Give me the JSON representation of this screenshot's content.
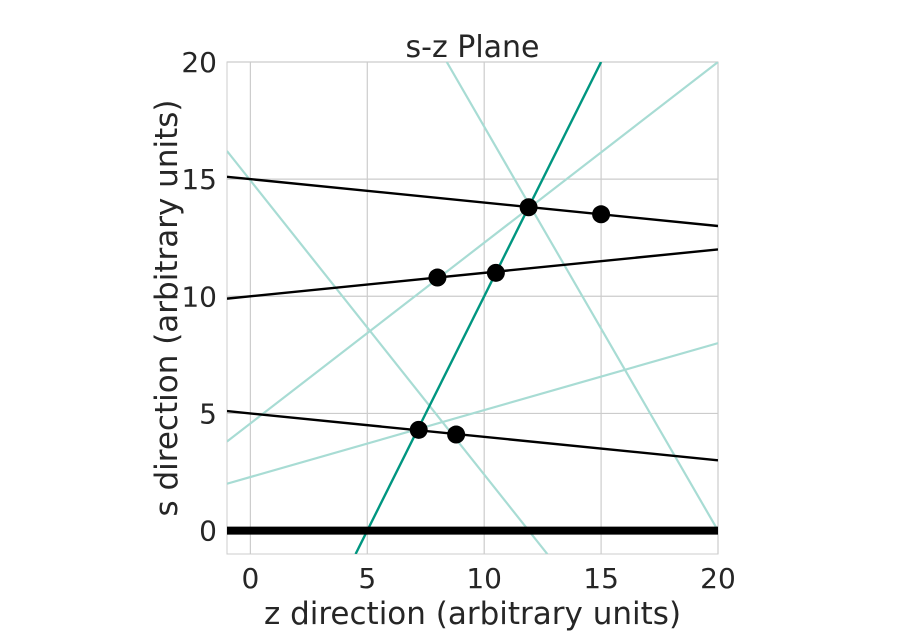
{
  "chart_data": {
    "type": "line",
    "title": "s-z Plane",
    "xlabel": "z direction (arbitrary units)",
    "ylabel": "s direction (arbitrary units)",
    "xlim": [
      -1,
      20
    ],
    "ylim": [
      -1,
      20
    ],
    "xticks": [
      0,
      5,
      10,
      15,
      20
    ],
    "yticks": [
      0,
      5,
      10,
      15,
      20
    ],
    "grid": true,
    "colors": {
      "black": "#000000",
      "teal": "#009680",
      "teal_light": "#a8dcd4",
      "grid": "#cccccc",
      "text": "#262626"
    },
    "baseline": {
      "y": 0,
      "color": "#000000"
    },
    "series": [
      {
        "x": [
          -1,
          20
        ],
        "y": [
          15.1,
          13.0
        ],
        "color": "#000000"
      },
      {
        "x": [
          -1,
          20
        ],
        "y": [
          9.9,
          12.0
        ],
        "color": "#000000"
      },
      {
        "x": [
          -1,
          20
        ],
        "y": [
          5.1,
          3.0
        ],
        "color": "#000000"
      },
      {
        "x": [
          4.5,
          15.0
        ],
        "y": [
          -1,
          20
        ],
        "color": "#009680"
      },
      {
        "x": [
          -1,
          20
        ],
        "y": [
          3.8,
          20.0
        ],
        "color": "#a8dcd4"
      },
      {
        "x": [
          -1,
          20
        ],
        "y": [
          2.0,
          8.0
        ],
        "color": "#a8dcd4"
      },
      {
        "x": [
          -1,
          12.7
        ],
        "y": [
          16.2,
          -1
        ],
        "color": "#a8dcd4"
      },
      {
        "x": [
          8.4,
          20.0
        ],
        "y": [
          20,
          0
        ],
        "color": "#a8dcd4"
      }
    ],
    "points": {
      "x": [
        11.9,
        15.0,
        8.0,
        10.5,
        7.2,
        8.8
      ],
      "y": [
        13.8,
        13.5,
        10.8,
        11.0,
        4.3,
        4.1
      ],
      "color": "#000000"
    }
  }
}
